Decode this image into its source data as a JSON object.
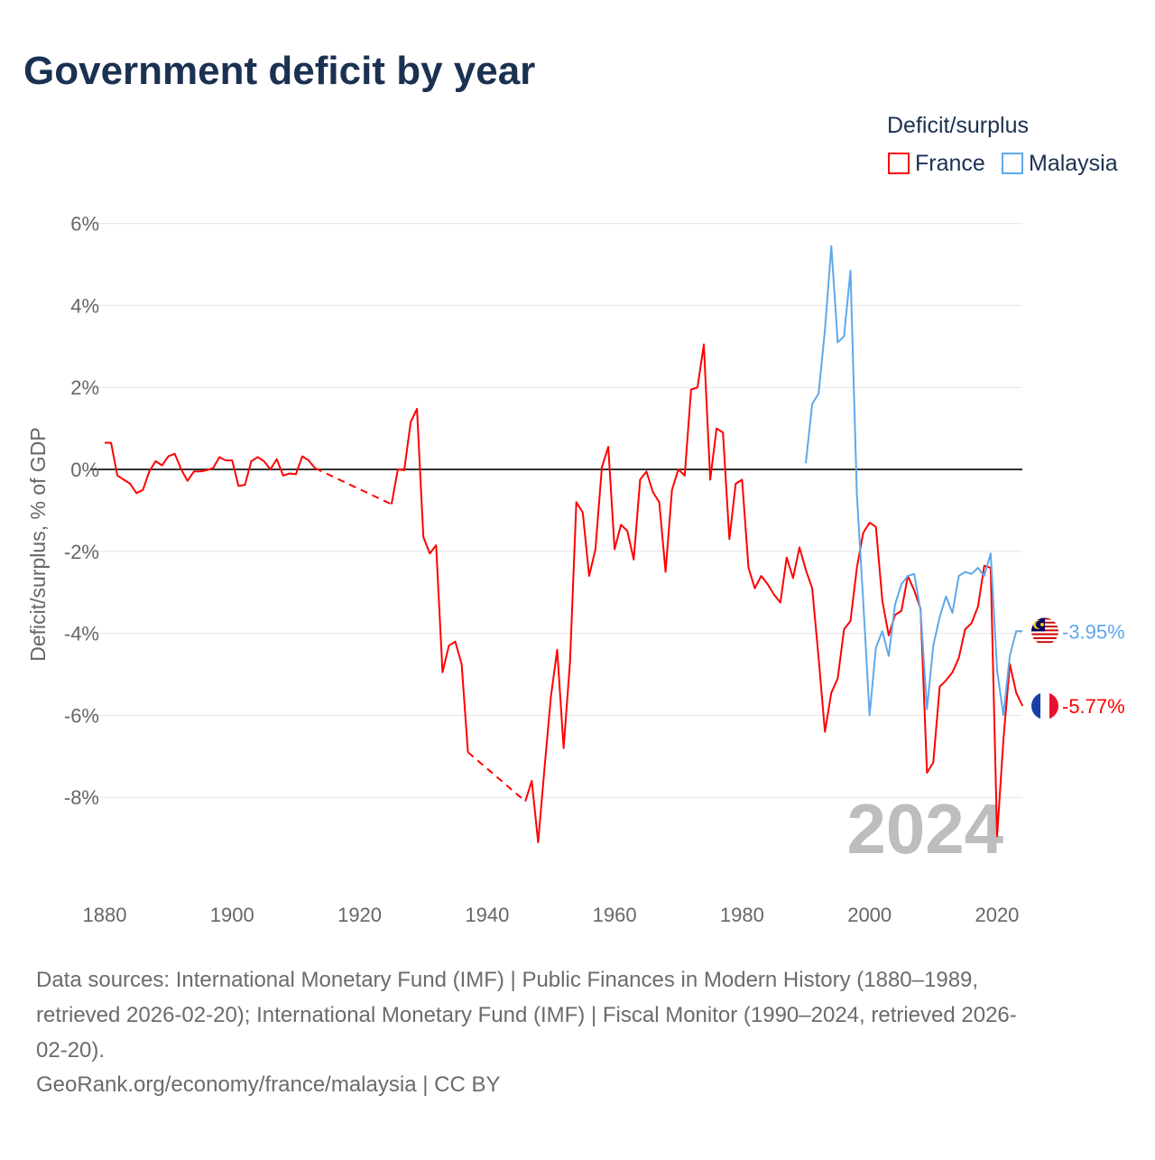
{
  "chart_data": {
    "type": "line",
    "title": "Government deficit by year",
    "ylabel": "Deficit/surplus, % of GDP",
    "xlabel": "",
    "ylim": [
      -10,
      6
    ],
    "xlim": [
      1880,
      2024
    ],
    "yticks": [
      "6%",
      "4%",
      "2%",
      "0%",
      "-2%",
      "-4%",
      "-6%",
      "-8%"
    ],
    "ytick_values": [
      6,
      4,
      2,
      0,
      -2,
      -4,
      -6,
      -8
    ],
    "xticks": [
      "1880",
      "1900",
      "1920",
      "1940",
      "1960",
      "1980",
      "2000",
      "2020"
    ],
    "xtick_values": [
      1880,
      1900,
      1920,
      1940,
      1960,
      1980,
      2000,
      2020
    ],
    "grid": true,
    "legend": {
      "title": "Deficit/surplus",
      "placement": "top-right"
    },
    "year_watermark": "2024",
    "series": [
      {
        "name": "France",
        "color": "#ff0000",
        "end_label": "-5.77%",
        "flag": "france",
        "points": [
          [
            1880,
            0.65
          ],
          [
            1881,
            0.65
          ],
          [
            1882,
            -0.15
          ],
          [
            1883,
            -0.25
          ],
          [
            1884,
            -0.35
          ],
          [
            1885,
            -0.58
          ],
          [
            1886,
            -0.5
          ],
          [
            1887,
            -0.05
          ],
          [
            1888,
            0.2
          ],
          [
            1889,
            0.1
          ],
          [
            1890,
            0.32
          ],
          [
            1891,
            0.38
          ],
          [
            1892,
            0.0
          ],
          [
            1893,
            -0.28
          ],
          [
            1894,
            -0.05
          ],
          [
            1895,
            -0.05
          ],
          [
            1896,
            -0.02
          ],
          [
            1897,
            0.03
          ],
          [
            1898,
            0.3
          ],
          [
            1899,
            0.22
          ],
          [
            1900,
            0.22
          ],
          [
            1901,
            -0.4
          ],
          [
            1902,
            -0.38
          ],
          [
            1903,
            0.2
          ],
          [
            1904,
            0.3
          ],
          [
            1905,
            0.2
          ],
          [
            1906,
            0.0
          ],
          [
            1907,
            0.25
          ],
          [
            1908,
            -0.15
          ],
          [
            1909,
            -0.1
          ],
          [
            1910,
            -0.12
          ],
          [
            1911,
            0.32
          ],
          [
            1912,
            0.22
          ],
          [
            1913,
            0.03
          ],
          [
            1925,
            -0.85
          ],
          [
            1926,
            0.0
          ],
          [
            1927,
            -0.02
          ],
          [
            1928,
            1.15
          ],
          [
            1929,
            1.48
          ],
          [
            1930,
            -1.65
          ],
          [
            1931,
            -2.05
          ],
          [
            1932,
            -1.85
          ],
          [
            1933,
            -4.95
          ],
          [
            1934,
            -4.3
          ],
          [
            1935,
            -4.2
          ],
          [
            1936,
            -4.75
          ],
          [
            1937,
            -6.9
          ],
          [
            1946,
            -8.1
          ],
          [
            1947,
            -7.6
          ],
          [
            1948,
            -9.1
          ],
          [
            1949,
            -7.3
          ],
          [
            1950,
            -5.55
          ],
          [
            1951,
            -4.4
          ],
          [
            1952,
            -6.8
          ],
          [
            1953,
            -4.7
          ],
          [
            1954,
            -0.8
          ],
          [
            1955,
            -1.05
          ],
          [
            1956,
            -2.6
          ],
          [
            1957,
            -1.95
          ],
          [
            1958,
            0.05
          ],
          [
            1959,
            0.55
          ],
          [
            1960,
            -1.95
          ],
          [
            1961,
            -1.35
          ],
          [
            1962,
            -1.5
          ],
          [
            1963,
            -2.2
          ],
          [
            1964,
            -0.25
          ],
          [
            1965,
            -0.05
          ],
          [
            1966,
            -0.55
          ],
          [
            1967,
            -0.8
          ],
          [
            1968,
            -2.5
          ],
          [
            1969,
            -0.5
          ],
          [
            1970,
            0.0
          ],
          [
            1971,
            -0.15
          ],
          [
            1972,
            1.95
          ],
          [
            1973,
            2.0
          ],
          [
            1974,
            3.05
          ],
          [
            1975,
            -0.25
          ],
          [
            1976,
            1.0
          ],
          [
            1977,
            0.9
          ],
          [
            1978,
            -1.7
          ],
          [
            1979,
            -0.35
          ],
          [
            1980,
            -0.25
          ],
          [
            1981,
            -2.4
          ],
          [
            1982,
            -2.9
          ],
          [
            1983,
            -2.6
          ],
          [
            1984,
            -2.8
          ],
          [
            1985,
            -3.05
          ],
          [
            1986,
            -3.25
          ],
          [
            1987,
            -2.15
          ],
          [
            1988,
            -2.65
          ],
          [
            1989,
            -1.9
          ],
          [
            1990,
            -2.45
          ],
          [
            1991,
            -2.9
          ],
          [
            1992,
            -4.6
          ],
          [
            1993,
            -6.4
          ],
          [
            1994,
            -5.45
          ],
          [
            1995,
            -5.1
          ],
          [
            1996,
            -3.9
          ],
          [
            1997,
            -3.7
          ],
          [
            1998,
            -2.4
          ],
          [
            1999,
            -1.55
          ],
          [
            2000,
            -1.3
          ],
          [
            2001,
            -1.4
          ],
          [
            2002,
            -3.2
          ],
          [
            2003,
            -4.05
          ],
          [
            2004,
            -3.55
          ],
          [
            2005,
            -3.45
          ],
          [
            2006,
            -2.6
          ],
          [
            2007,
            -2.95
          ],
          [
            2008,
            -3.4
          ],
          [
            2009,
            -7.4
          ],
          [
            2010,
            -7.15
          ],
          [
            2011,
            -5.3
          ],
          [
            2012,
            -5.15
          ],
          [
            2013,
            -4.95
          ],
          [
            2014,
            -4.6
          ],
          [
            2015,
            -3.9
          ],
          [
            2016,
            -3.75
          ],
          [
            2017,
            -3.35
          ],
          [
            2018,
            -2.35
          ],
          [
            2019,
            -2.4
          ],
          [
            2020,
            -8.95
          ],
          [
            2021,
            -6.6
          ],
          [
            2022,
            -4.75
          ],
          [
            2023,
            -5.45
          ],
          [
            2024,
            -5.77
          ]
        ]
      },
      {
        "name": "Malaysia",
        "color": "#5fa8ea",
        "end_label": "-3.95%",
        "flag": "malaysia",
        "points": [
          [
            1990,
            0.15
          ],
          [
            1991,
            1.6
          ],
          [
            1992,
            1.85
          ],
          [
            1993,
            3.4
          ],
          [
            1994,
            5.45
          ],
          [
            1995,
            3.1
          ],
          [
            1996,
            3.25
          ],
          [
            1997,
            4.85
          ],
          [
            1998,
            -0.6
          ],
          [
            1999,
            -3.2
          ],
          [
            2000,
            -6.0
          ],
          [
            2001,
            -4.35
          ],
          [
            2002,
            -3.95
          ],
          [
            2003,
            -4.55
          ],
          [
            2004,
            -3.3
          ],
          [
            2005,
            -2.8
          ],
          [
            2006,
            -2.6
          ],
          [
            2007,
            -2.55
          ],
          [
            2008,
            -3.45
          ],
          [
            2009,
            -5.85
          ],
          [
            2010,
            -4.3
          ],
          [
            2011,
            -3.6
          ],
          [
            2012,
            -3.1
          ],
          [
            2013,
            -3.5
          ],
          [
            2014,
            -2.6
          ],
          [
            2015,
            -2.5
          ],
          [
            2016,
            -2.55
          ],
          [
            2017,
            -2.4
          ],
          [
            2018,
            -2.6
          ],
          [
            2019,
            -2.05
          ],
          [
            2020,
            -4.9
          ],
          [
            2021,
            -6.0
          ],
          [
            2022,
            -4.55
          ],
          [
            2023,
            -3.95
          ],
          [
            2024,
            -3.95
          ]
        ]
      }
    ]
  },
  "footer": {
    "line1": "Data sources: International Monetary Fund (IMF) | Public Finances in Modern History (1880–1989,",
    "line2": "retrieved 2026-02-20); International Monetary Fund (IMF) | Fiscal Monitor (1990–2024, retrieved 2026-",
    "line3": "02-20).",
    "line4": "GeoRank.org/economy/france/malaysia | CC BY"
  }
}
